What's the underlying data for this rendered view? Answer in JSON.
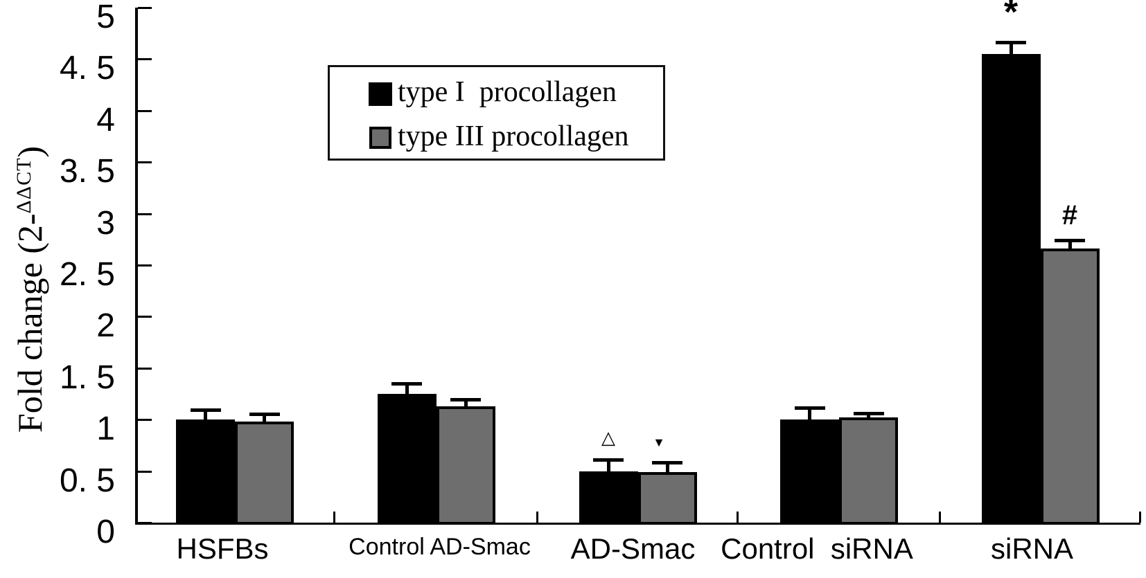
{
  "figure": {
    "background": "#ffffff",
    "ylabel": {
      "prefix": "Fold change (2-",
      "sup": "ΔΔCT",
      "suffix": ")"
    }
  },
  "chart_data": {
    "type": "bar",
    "title": "",
    "xlabel": "",
    "ylabel": "Fold change (2-ΔΔCT)",
    "ylim": [
      0,
      5
    ],
    "grid": false,
    "legend_position": "upper-left-inside",
    "categories": [
      "HSFBs",
      "Control AD-Smac",
      "AD-Smac",
      "Control  siRNA",
      "siRNA"
    ],
    "series": [
      {
        "name": "type I  procollagen",
        "color": "#000000",
        "values": [
          1.0,
          1.25,
          0.5,
          1.0,
          4.55
        ],
        "errors": [
          0.08,
          0.09,
          0.1,
          0.1,
          0.1
        ]
      },
      {
        "name": "type III procollagen",
        "color": "#6e6e6e",
        "values": [
          0.98,
          1.13,
          0.49,
          1.02,
          2.66
        ],
        "errors": [
          0.06,
          0.05,
          0.08,
          0.03,
          0.07
        ]
      }
    ],
    "ytick_labels": [
      "0",
      "0. 5",
      "1",
      "1. 5",
      "2",
      "2. 5",
      "3",
      "3. 5",
      "4",
      "4. 5",
      "5"
    ],
    "annotations": [
      {
        "symbol": "△",
        "meaning": "open-triangle",
        "series": 0,
        "category": 2
      },
      {
        "symbol": "▼",
        "meaning": "filled-down-triangle",
        "series": 1,
        "category": 2
      },
      {
        "symbol": "*",
        "meaning": "asterisk",
        "series": 0,
        "category": 4
      },
      {
        "symbol": "#",
        "meaning": "hash",
        "series": 1,
        "category": 4
      }
    ]
  }
}
